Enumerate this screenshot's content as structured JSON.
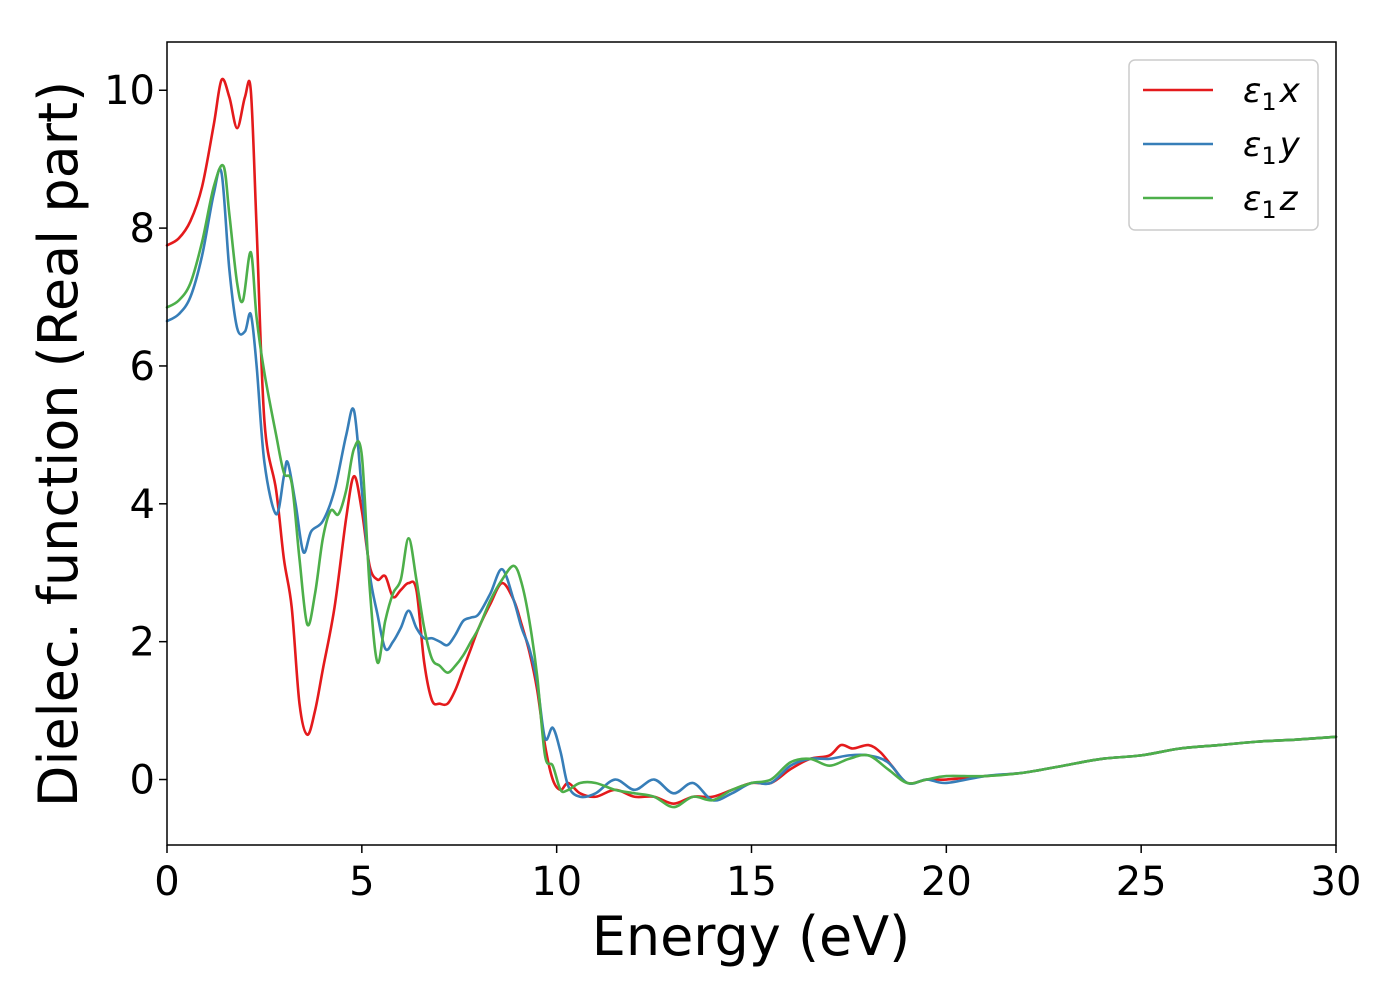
{
  "chart_data": {
    "type": "line",
    "xlabel": "Energy (eV)",
    "ylabel": "Dielec. function (Real part)",
    "xlim": [
      0,
      30
    ],
    "ylim": [
      -0.95,
      10.7
    ],
    "xticks": [
      0,
      5,
      10,
      15,
      20,
      25,
      30
    ],
    "yticks": [
      0,
      2,
      4,
      6,
      8,
      10
    ],
    "grid": false,
    "legend_position": "top-right",
    "series": [
      {
        "name": "ε1x",
        "legend_main": "ε",
        "legend_sub": "1",
        "legend_tail": "x",
        "color": "#e41a1c",
        "x": [
          0,
          0.3,
          0.6,
          0.9,
          1.2,
          1.4,
          1.6,
          1.8,
          2.0,
          2.15,
          2.3,
          2.5,
          2.8,
          3.0,
          3.2,
          3.4,
          3.6,
          3.8,
          4.0,
          4.3,
          4.6,
          4.8,
          5.0,
          5.2,
          5.4,
          5.6,
          5.8,
          6.0,
          6.2,
          6.4,
          6.6,
          6.8,
          7.0,
          7.2,
          7.4,
          7.6,
          7.8,
          8.0,
          8.3,
          8.6,
          8.9,
          9.1,
          9.3,
          9.5,
          9.7,
          9.9,
          10.1,
          10.3,
          10.6,
          11.0,
          11.5,
          12.0,
          12.5,
          13.0,
          13.5,
          14.0,
          14.5,
          15.0,
          15.5,
          16.0,
          16.5,
          17.0,
          17.3,
          17.6,
          18.0,
          18.3,
          18.6,
          19.0,
          19.5,
          20.0,
          21.0,
          22.0,
          23.0,
          24.0,
          25.0,
          26.0,
          27.0,
          28.0,
          29.0,
          30.0
        ],
        "y": [
          7.75,
          7.85,
          8.1,
          8.6,
          9.5,
          10.15,
          9.9,
          9.45,
          9.9,
          10.0,
          8.0,
          5.2,
          4.2,
          3.2,
          2.5,
          1.1,
          0.65,
          1.0,
          1.6,
          2.5,
          3.8,
          4.4,
          3.9,
          3.1,
          2.9,
          2.95,
          2.65,
          2.75,
          2.85,
          2.75,
          1.7,
          1.15,
          1.1,
          1.1,
          1.3,
          1.6,
          1.9,
          2.2,
          2.55,
          2.85,
          2.6,
          2.25,
          1.85,
          1.3,
          0.5,
          0.0,
          -0.15,
          -0.05,
          -0.2,
          -0.25,
          -0.15,
          -0.25,
          -0.25,
          -0.35,
          -0.25,
          -0.25,
          -0.15,
          -0.05,
          -0.05,
          0.15,
          0.3,
          0.35,
          0.5,
          0.45,
          0.5,
          0.4,
          0.2,
          -0.05,
          0.0,
          0.0,
          0.05,
          0.1,
          0.2,
          0.3,
          0.35,
          0.45,
          0.5,
          0.55,
          0.58,
          0.62
        ]
      },
      {
        "name": "ε1y",
        "legend_main": "ε",
        "legend_sub": "1",
        "legend_tail": "y",
        "color": "#377eb8",
        "x": [
          0,
          0.3,
          0.6,
          0.9,
          1.2,
          1.4,
          1.6,
          1.8,
          2.0,
          2.15,
          2.3,
          2.5,
          2.8,
          3.0,
          3.1,
          3.3,
          3.5,
          3.7,
          4.0,
          4.3,
          4.6,
          4.8,
          5.0,
          5.2,
          5.4,
          5.6,
          5.8,
          6.0,
          6.2,
          6.4,
          6.6,
          6.8,
          7.0,
          7.2,
          7.4,
          7.6,
          7.8,
          8.0,
          8.3,
          8.6,
          8.9,
          9.1,
          9.3,
          9.5,
          9.7,
          9.9,
          10.1,
          10.3,
          10.6,
          11.0,
          11.5,
          12.0,
          12.5,
          13.0,
          13.5,
          14.0,
          14.5,
          15.0,
          15.5,
          16.0,
          16.5,
          17.0,
          17.5,
          18.0,
          18.5,
          19.0,
          19.5,
          20.0,
          21.0,
          22.0,
          23.0,
          24.0,
          25.0,
          26.0,
          27.0,
          28.0,
          29.0,
          30.0
        ],
        "y": [
          6.65,
          6.75,
          7.0,
          7.6,
          8.5,
          8.8,
          7.4,
          6.55,
          6.5,
          6.75,
          6.0,
          4.6,
          3.85,
          4.4,
          4.6,
          4.0,
          3.3,
          3.6,
          3.75,
          4.2,
          5.0,
          5.35,
          4.2,
          3.0,
          2.4,
          1.9,
          2.0,
          2.2,
          2.45,
          2.2,
          2.05,
          2.05,
          2.0,
          1.95,
          2.1,
          2.3,
          2.35,
          2.4,
          2.7,
          3.05,
          2.6,
          2.2,
          1.9,
          1.4,
          0.6,
          0.75,
          0.4,
          -0.1,
          -0.25,
          -0.2,
          0.0,
          -0.15,
          0.0,
          -0.2,
          -0.05,
          -0.3,
          -0.2,
          -0.05,
          -0.05,
          0.2,
          0.3,
          0.3,
          0.35,
          0.35,
          0.25,
          -0.05,
          0.0,
          -0.05,
          0.05,
          0.1,
          0.2,
          0.3,
          0.35,
          0.45,
          0.5,
          0.55,
          0.58,
          0.62
        ]
      },
      {
        "name": "ε1z",
        "legend_main": "ε",
        "legend_sub": "1",
        "legend_tail": "z",
        "color": "#4daf4a",
        "x": [
          0,
          0.3,
          0.6,
          0.9,
          1.2,
          1.45,
          1.6,
          1.8,
          1.95,
          2.15,
          2.3,
          2.5,
          2.8,
          3.0,
          3.2,
          3.4,
          3.6,
          3.8,
          4.0,
          4.2,
          4.4,
          4.6,
          4.8,
          5.0,
          5.2,
          5.4,
          5.6,
          5.8,
          6.0,
          6.2,
          6.4,
          6.6,
          6.8,
          7.0,
          7.2,
          7.4,
          7.6,
          7.8,
          8.0,
          8.3,
          8.6,
          8.9,
          9.1,
          9.3,
          9.5,
          9.7,
          9.9,
          10.1,
          10.3,
          10.6,
          11.0,
          11.5,
          12.0,
          12.5,
          13.0,
          13.5,
          14.0,
          14.5,
          15.0,
          15.5,
          16.0,
          16.5,
          17.0,
          17.5,
          18.0,
          18.5,
          19.0,
          19.5,
          20.0,
          21.0,
          22.0,
          23.0,
          24.0,
          25.0,
          26.0,
          27.0,
          28.0,
          29.0,
          30.0
        ],
        "y": [
          6.85,
          6.95,
          7.2,
          7.8,
          8.6,
          8.9,
          8.2,
          7.2,
          6.95,
          7.65,
          6.7,
          5.9,
          5.0,
          4.45,
          4.3,
          3.2,
          2.25,
          2.7,
          3.5,
          3.9,
          3.85,
          4.2,
          4.8,
          4.7,
          2.8,
          1.7,
          2.3,
          2.7,
          2.9,
          3.5,
          2.9,
          2.2,
          1.75,
          1.65,
          1.55,
          1.65,
          1.8,
          2.0,
          2.2,
          2.6,
          2.9,
          3.1,
          2.85,
          2.3,
          1.5,
          0.35,
          0.2,
          -0.15,
          -0.15,
          -0.05,
          -0.05,
          -0.15,
          -0.2,
          -0.25,
          -0.4,
          -0.25,
          -0.3,
          -0.15,
          -0.05,
          0.0,
          0.25,
          0.3,
          0.2,
          0.3,
          0.35,
          0.15,
          -0.05,
          0.0,
          0.05,
          0.05,
          0.1,
          0.2,
          0.3,
          0.35,
          0.45,
          0.5,
          0.55,
          0.58,
          0.62
        ]
      }
    ]
  }
}
